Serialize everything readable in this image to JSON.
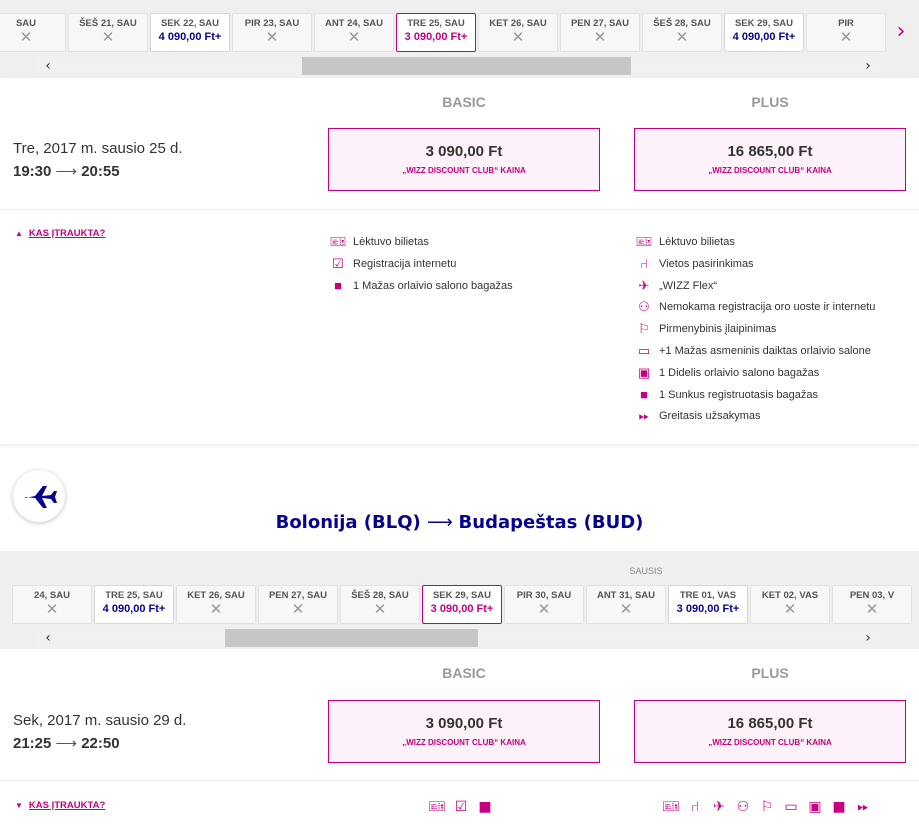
{
  "colors": {
    "accent": "#c6007e",
    "price_blue": "#06038d",
    "fare_bg": "#fdf2f9"
  },
  "outbound": {
    "dates": [
      {
        "label": "SAU",
        "price": null
      },
      {
        "label": "ŠEŠ 21, SAU",
        "price": null
      },
      {
        "label": "SEK 22, SAU",
        "price": "4 090,00 Ft+"
      },
      {
        "label": "PIR 23, SAU",
        "price": null
      },
      {
        "label": "ANT 24, SAU",
        "price": null
      },
      {
        "label": "TRE 25, SAU",
        "price": "3 090,00 Ft+",
        "selected": true
      },
      {
        "label": "KET 26, SAU",
        "price": null
      },
      {
        "label": "PEN 27, SAU",
        "price": null
      },
      {
        "label": "ŠEŠ 28, SAU",
        "price": null
      },
      {
        "label": "SEK 29, SAU",
        "price": "4 090,00 Ft+"
      },
      {
        "label": "PIR",
        "price": null
      }
    ],
    "fare_headers": {
      "basic": "BASIC",
      "plus": "PLUS"
    },
    "flight_date": "Tre, 2017 m. sausio 25 d.",
    "depart": "19:30",
    "arrive": "20:55",
    "basic_price": "3 090,00 Ft",
    "plus_price": "16 865,00 Ft",
    "fare_note": "„WIZZ DISCOUNT CLUB“ KAINA",
    "included_label": "KAS ĮTRAUKTA?",
    "basic_features": [
      {
        "icon": "ticket-icon",
        "label": "Lėktuvo bilietas"
      },
      {
        "icon": "online-checkin-icon",
        "label": "Registracija internetu"
      },
      {
        "icon": "small-bag-icon",
        "label": "1 Mažas orlaivio salono bagažas"
      }
    ],
    "plus_features": [
      {
        "icon": "ticket-icon",
        "label": "Lėktuvo bilietas"
      },
      {
        "icon": "seat-icon",
        "label": "Vietos pasirinkimas"
      },
      {
        "icon": "wizz-flex-icon",
        "label": "„WIZZ Flex“"
      },
      {
        "icon": "checkin-people-icon",
        "label": "Nemokama registracija oro uoste ir internetu"
      },
      {
        "icon": "priority-boarding-icon",
        "label": "Pirmenybinis įlaipinimas"
      },
      {
        "icon": "personal-item-icon",
        "label": "+1 Mažas asmeninis daiktas orlaivio salone"
      },
      {
        "icon": "large-cabin-bag-icon",
        "label": "1 Didelis orlaivio salono bagažas"
      },
      {
        "icon": "checked-bag-icon",
        "label": "1 Sunkus registruotasis bagažas"
      },
      {
        "icon": "fast-forward-icon",
        "label": "Greitasis užsakymas"
      }
    ]
  },
  "return": {
    "route_from": "Bolonija (BLQ)",
    "route_to": "Budapeštas (BUD)",
    "month_label": "SAUSIS",
    "dates": [
      {
        "label": "24, SAU",
        "price": null
      },
      {
        "label": "TRE 25, SAU",
        "price": "4 090,00 Ft+"
      },
      {
        "label": "KET 26, SAU",
        "price": null
      },
      {
        "label": "PEN 27, SAU",
        "price": null
      },
      {
        "label": "ŠEŠ 28, SAU",
        "price": null
      },
      {
        "label": "SEK 29, SAU",
        "price": "3 090,00 Ft+",
        "selected": true
      },
      {
        "label": "PIR 30, SAU",
        "price": null
      },
      {
        "label": "ANT 31, SAU",
        "price": null
      },
      {
        "label": "TRE 01, VAS",
        "price": "3 090,00 Ft+"
      },
      {
        "label": "KET 02, VAS",
        "price": null
      },
      {
        "label": "PEN 03, V",
        "price": null
      }
    ],
    "fare_headers": {
      "basic": "BASIC",
      "plus": "PLUS"
    },
    "flight_date": "Sek, 2017 m. sausio 29 d.",
    "depart": "21:25",
    "arrive": "22:50",
    "basic_price": "3 090,00 Ft",
    "plus_price": "16 865,00 Ft",
    "fare_note": "„WIZZ DISCOUNT CLUB“ KAINA",
    "included_label": "KAS ĮTRAUKTA?"
  }
}
